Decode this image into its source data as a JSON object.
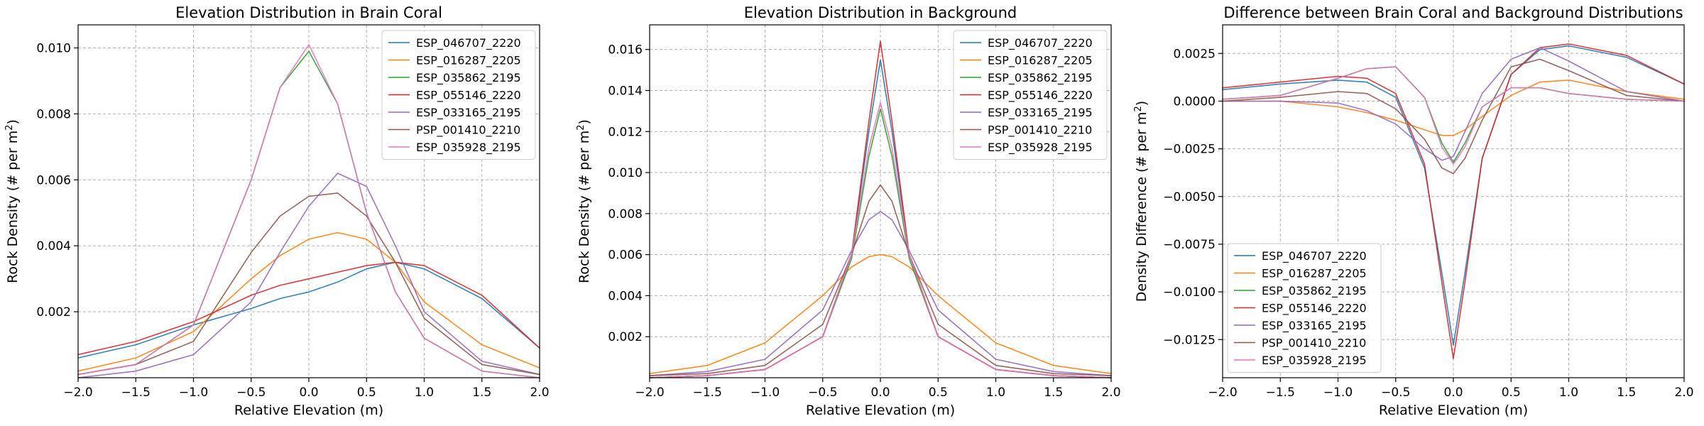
{
  "chart_data": [
    {
      "type": "line",
      "title": "Elevation Distribution in Brain Coral",
      "xlabel": "Relative Elevation (m)",
      "ylabel": "Rock Density (# per m²)",
      "xlim": [
        -2.0,
        2.0
      ],
      "ylim": [
        0.0,
        0.0107
      ],
      "xticks": [
        -2.0,
        -1.5,
        -1.0,
        -0.5,
        0.0,
        0.5,
        1.0,
        1.5,
        2.0
      ],
      "xtick_labels": [
        "−2.0",
        "−1.5",
        "−1.0",
        "−0.5",
        "0.0",
        "0.5",
        "1.0",
        "1.5",
        "2.0"
      ],
      "yticks": [
        0.002,
        0.004,
        0.006,
        0.008,
        0.01
      ],
      "ytick_labels": [
        "0.002",
        "0.004",
        "0.006",
        "0.008",
        "0.010"
      ],
      "grid": true,
      "legend": "top-right",
      "x": [
        -2.0,
        -1.5,
        -1.0,
        -0.5,
        -0.25,
        0.0,
        0.25,
        0.5,
        0.75,
        1.0,
        1.5,
        2.0
      ],
      "series": [
        {
          "name": "ESP_046707_2220",
          "values": [
            0.0006,
            0.001,
            0.0016,
            0.0021,
            0.0024,
            0.0026,
            0.0029,
            0.0033,
            0.0035,
            0.0033,
            0.0024,
            0.0009
          ]
        },
        {
          "name": "ESP_016287_2205",
          "values": [
            0.0002,
            0.0006,
            0.0014,
            0.003,
            0.0037,
            0.0042,
            0.0044,
            0.0042,
            0.0035,
            0.0023,
            0.001,
            0.0003
          ]
        },
        {
          "name": "ESP_035862_2195",
          "values": [
            0.0001,
            0.0004,
            0.0016,
            0.006,
            0.0088,
            0.0099,
            0.0083,
            0.005,
            0.0026,
            0.0012,
            0.0002,
            0.0
          ]
        },
        {
          "name": "ESP_055146_2220",
          "values": [
            0.0007,
            0.0011,
            0.0017,
            0.0025,
            0.0028,
            0.003,
            0.0032,
            0.0034,
            0.0035,
            0.0034,
            0.0025,
            0.0009
          ]
        },
        {
          "name": "ESP_033165_2195",
          "values": [
            0.0,
            0.0002,
            0.0007,
            0.0023,
            0.0038,
            0.0052,
            0.0062,
            0.0058,
            0.004,
            0.002,
            0.0005,
            0.0001
          ]
        },
        {
          "name": "PSP_001410_2210",
          "values": [
            0.0001,
            0.0004,
            0.0011,
            0.0038,
            0.0049,
            0.0055,
            0.0056,
            0.0049,
            0.0035,
            0.0018,
            0.0004,
            0.0001
          ]
        },
        {
          "name": "ESP_035928_2195",
          "values": [
            0.0001,
            0.0004,
            0.0016,
            0.006,
            0.0088,
            0.0101,
            0.0083,
            0.005,
            0.0026,
            0.0012,
            0.0002,
            0.0
          ]
        }
      ]
    },
    {
      "type": "line",
      "title": "Elevation Distribution in Background",
      "xlabel": "Relative Elevation (m)",
      "ylabel": "Rock Density (# per m²)",
      "xlim": [
        -2.0,
        2.0
      ],
      "ylim": [
        0.0,
        0.0172
      ],
      "xticks": [
        -2.0,
        -1.5,
        -1.0,
        -0.5,
        0.0,
        0.5,
        1.0,
        1.5,
        2.0
      ],
      "xtick_labels": [
        "−2.0",
        "−1.5",
        "−1.0",
        "−0.5",
        "0.0",
        "0.5",
        "1.0",
        "1.5",
        "2.0"
      ],
      "yticks": [
        0.002,
        0.004,
        0.006,
        0.008,
        0.01,
        0.012,
        0.014,
        0.016
      ],
      "ytick_labels": [
        "0.002",
        "0.004",
        "0.006",
        "0.008",
        "0.010",
        "0.012",
        "0.014",
        "0.016"
      ],
      "grid": true,
      "legend": "top-right",
      "x": [
        -2.0,
        -1.5,
        -1.0,
        -0.5,
        -0.25,
        -0.1,
        0.0,
        0.1,
        0.25,
        0.5,
        1.0,
        1.5,
        2.0
      ],
      "series": [
        {
          "name": "ESP_046707_2220",
          "values": [
            0.0,
            0.0001,
            0.0004,
            0.002,
            0.006,
            0.012,
            0.0155,
            0.012,
            0.006,
            0.002,
            0.0004,
            0.0001,
            0.0
          ]
        },
        {
          "name": "ESP_016287_2205",
          "values": [
            0.0002,
            0.0006,
            0.0017,
            0.004,
            0.0054,
            0.0059,
            0.006,
            0.0059,
            0.0054,
            0.004,
            0.0017,
            0.0006,
            0.0002
          ]
        },
        {
          "name": "ESP_035862_2195",
          "values": [
            0.0,
            0.0001,
            0.0004,
            0.002,
            0.0058,
            0.0108,
            0.0131,
            0.0108,
            0.0058,
            0.002,
            0.0004,
            0.0001,
            0.0
          ]
        },
        {
          "name": "ESP_055146_2220",
          "values": [
            0.0,
            0.0001,
            0.0004,
            0.002,
            0.006,
            0.0125,
            0.0164,
            0.0125,
            0.006,
            0.002,
            0.0004,
            0.0001,
            0.0
          ]
        },
        {
          "name": "ESP_033165_2195",
          "values": [
            0.0001,
            0.0003,
            0.0009,
            0.0033,
            0.0062,
            0.0077,
            0.0081,
            0.0077,
            0.0062,
            0.0033,
            0.0009,
            0.0003,
            0.0001
          ]
        },
        {
          "name": "PSP_001410_2210",
          "values": [
            0.0001,
            0.0002,
            0.0006,
            0.0026,
            0.006,
            0.0086,
            0.0094,
            0.0086,
            0.006,
            0.0026,
            0.0006,
            0.0002,
            0.0001
          ]
        },
        {
          "name": "ESP_035928_2195",
          "values": [
            0.0,
            0.0001,
            0.0004,
            0.002,
            0.006,
            0.0112,
            0.0134,
            0.0112,
            0.006,
            0.002,
            0.0004,
            0.0001,
            0.0
          ]
        }
      ]
    },
    {
      "type": "line",
      "title": "Difference between Brain Coral and Background Distributions",
      "xlabel": "Relative Elevation (m)",
      "ylabel": "Density Difference (# per m²)",
      "xlim": [
        -2.0,
        2.0
      ],
      "ylim": [
        -0.0145,
        0.004
      ],
      "xticks": [
        -2.0,
        -1.5,
        -1.0,
        -0.5,
        0.0,
        0.5,
        1.0,
        1.5,
        2.0
      ],
      "xtick_labels": [
        "−2.0",
        "−1.5",
        "−1.0",
        "−0.5",
        "0.0",
        "0.5",
        "1.0",
        "1.5",
        "2.0"
      ],
      "yticks": [
        -0.0125,
        -0.01,
        -0.0075,
        -0.005,
        -0.0025,
        0.0,
        0.0025
      ],
      "ytick_labels": [
        "−0.0125",
        "−0.0100",
        "−0.0075",
        "−0.0050",
        "−0.0025",
        "0.0000",
        "0.0025"
      ],
      "grid": true,
      "legend": "bottom-left",
      "x": [
        -2.0,
        -1.5,
        -1.0,
        -0.75,
        -0.5,
        -0.25,
        -0.1,
        0.0,
        0.1,
        0.25,
        0.5,
        0.75,
        1.0,
        1.5,
        2.0
      ],
      "series": [
        {
          "name": "ESP_046707_2220",
          "values": [
            0.0006,
            0.0009,
            0.0011,
            0.001,
            0.0002,
            -0.0035,
            -0.009,
            -0.0128,
            -0.009,
            -0.003,
            0.0014,
            0.0027,
            0.0029,
            0.0023,
            0.0009
          ]
        },
        {
          "name": "ESP_016287_2205",
          "values": [
            0.0,
            0.0,
            -0.0003,
            -0.0006,
            -0.001,
            -0.0015,
            -0.0018,
            -0.0018,
            -0.0015,
            -0.0008,
            0.0003,
            0.001,
            0.0011,
            0.0005,
            0.0001
          ]
        },
        {
          "name": "ESP_035862_2195",
          "values": [
            0.0001,
            0.0003,
            0.0012,
            0.0017,
            0.0018,
            0.0002,
            -0.0022,
            -0.0032,
            -0.0022,
            -0.0003,
            0.0007,
            0.0007,
            0.0004,
            0.0001,
            0.0
          ]
        },
        {
          "name": "ESP_055146_2220",
          "values": [
            0.0007,
            0.001,
            0.0013,
            0.0012,
            0.0004,
            -0.0033,
            -0.0095,
            -0.0135,
            -0.0095,
            -0.003,
            0.0014,
            0.0028,
            0.003,
            0.0024,
            0.0009
          ]
        },
        {
          "name": "ESP_033165_2195",
          "values": [
            0.0,
            0.0,
            -0.0001,
            -0.0005,
            -0.0012,
            -0.0025,
            -0.0031,
            -0.0029,
            -0.0016,
            0.0004,
            0.0022,
            0.0028,
            0.0021,
            0.0005,
            0.0
          ]
        },
        {
          "name": "PSP_001410_2210",
          "values": [
            0.0,
            0.0002,
            0.0005,
            0.0004,
            -0.0004,
            -0.002,
            -0.0035,
            -0.0038,
            -0.003,
            -0.001,
            0.0018,
            0.0022,
            0.0016,
            0.0003,
            0.0
          ]
        },
        {
          "name": "ESP_035928_2195",
          "values": [
            0.0001,
            0.0003,
            0.0012,
            0.0017,
            0.0018,
            0.0002,
            -0.0024,
            -0.0033,
            -0.0024,
            -0.0003,
            0.0007,
            0.0007,
            0.0004,
            0.0001,
            0.0
          ]
        }
      ]
    }
  ],
  "colors": [
    "#1f77b4",
    "#ff7f0e",
    "#2ca02c",
    "#d62728",
    "#9467bd",
    "#8c564b",
    "#e377c2"
  ]
}
